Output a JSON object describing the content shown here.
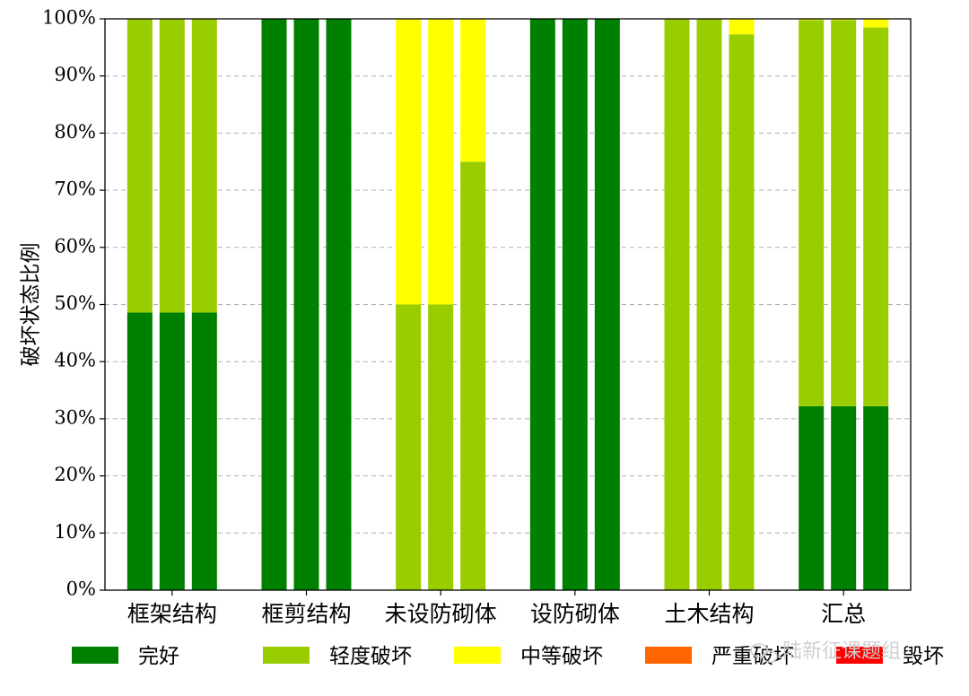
{
  "chart_data": {
    "type": "bar",
    "stacked": true,
    "ylabel": "破坏状态比例",
    "ylim": [
      0,
      100
    ],
    "yticks": [
      "0%",
      "10%",
      "20%",
      "30%",
      "40%",
      "50%",
      "60%",
      "70%",
      "80%",
      "90%",
      "100%"
    ],
    "grid": "horizontal dashed",
    "legend_position": "bottom",
    "categories": [
      "框架结构",
      "框剪结构",
      "未设防砌体",
      "设防砌体",
      "土木结构",
      "汇总"
    ],
    "bars_per_category": 3,
    "series": [
      {
        "name": "完好",
        "color": "#008000",
        "values": [
          [
            48.6,
            48.6,
            48.6
          ],
          [
            100,
            100,
            100
          ],
          [
            0,
            0,
            0
          ],
          [
            100,
            100,
            100
          ],
          [
            0,
            0,
            0
          ],
          [
            32.2,
            32.2,
            32.2
          ]
        ]
      },
      {
        "name": "轻度破坏",
        "color": "#9ACD00",
        "values": [
          [
            51.4,
            51.4,
            51.4
          ],
          [
            0,
            0,
            0
          ],
          [
            50,
            50,
            75
          ],
          [
            0,
            0,
            0
          ],
          [
            100,
            100,
            97.3
          ],
          [
            67.6,
            67.6,
            66.3
          ]
        ]
      },
      {
        "name": "中等破坏",
        "color": "#FFFF00",
        "values": [
          [
            0,
            0,
            0
          ],
          [
            0,
            0,
            0
          ],
          [
            50,
            50,
            25
          ],
          [
            0,
            0,
            0
          ],
          [
            0,
            0,
            2.7
          ],
          [
            0.2,
            0.2,
            1.5
          ]
        ]
      },
      {
        "name": "严重破坏",
        "color": "#FF6600",
        "values": [
          [
            0,
            0,
            0
          ],
          [
            0,
            0,
            0
          ],
          [
            0,
            0,
            0
          ],
          [
            0,
            0,
            0
          ],
          [
            0,
            0,
            0
          ],
          [
            0,
            0,
            0
          ]
        ]
      },
      {
        "name": "毁坏",
        "color": "#FF0000",
        "values": [
          [
            0,
            0,
            0
          ],
          [
            0,
            0,
            0
          ],
          [
            0,
            0,
            0
          ],
          [
            0,
            0,
            0
          ],
          [
            0,
            0,
            0
          ],
          [
            0,
            0,
            0
          ]
        ]
      }
    ]
  },
  "watermark": {
    "text": "陆新征课题组"
  }
}
